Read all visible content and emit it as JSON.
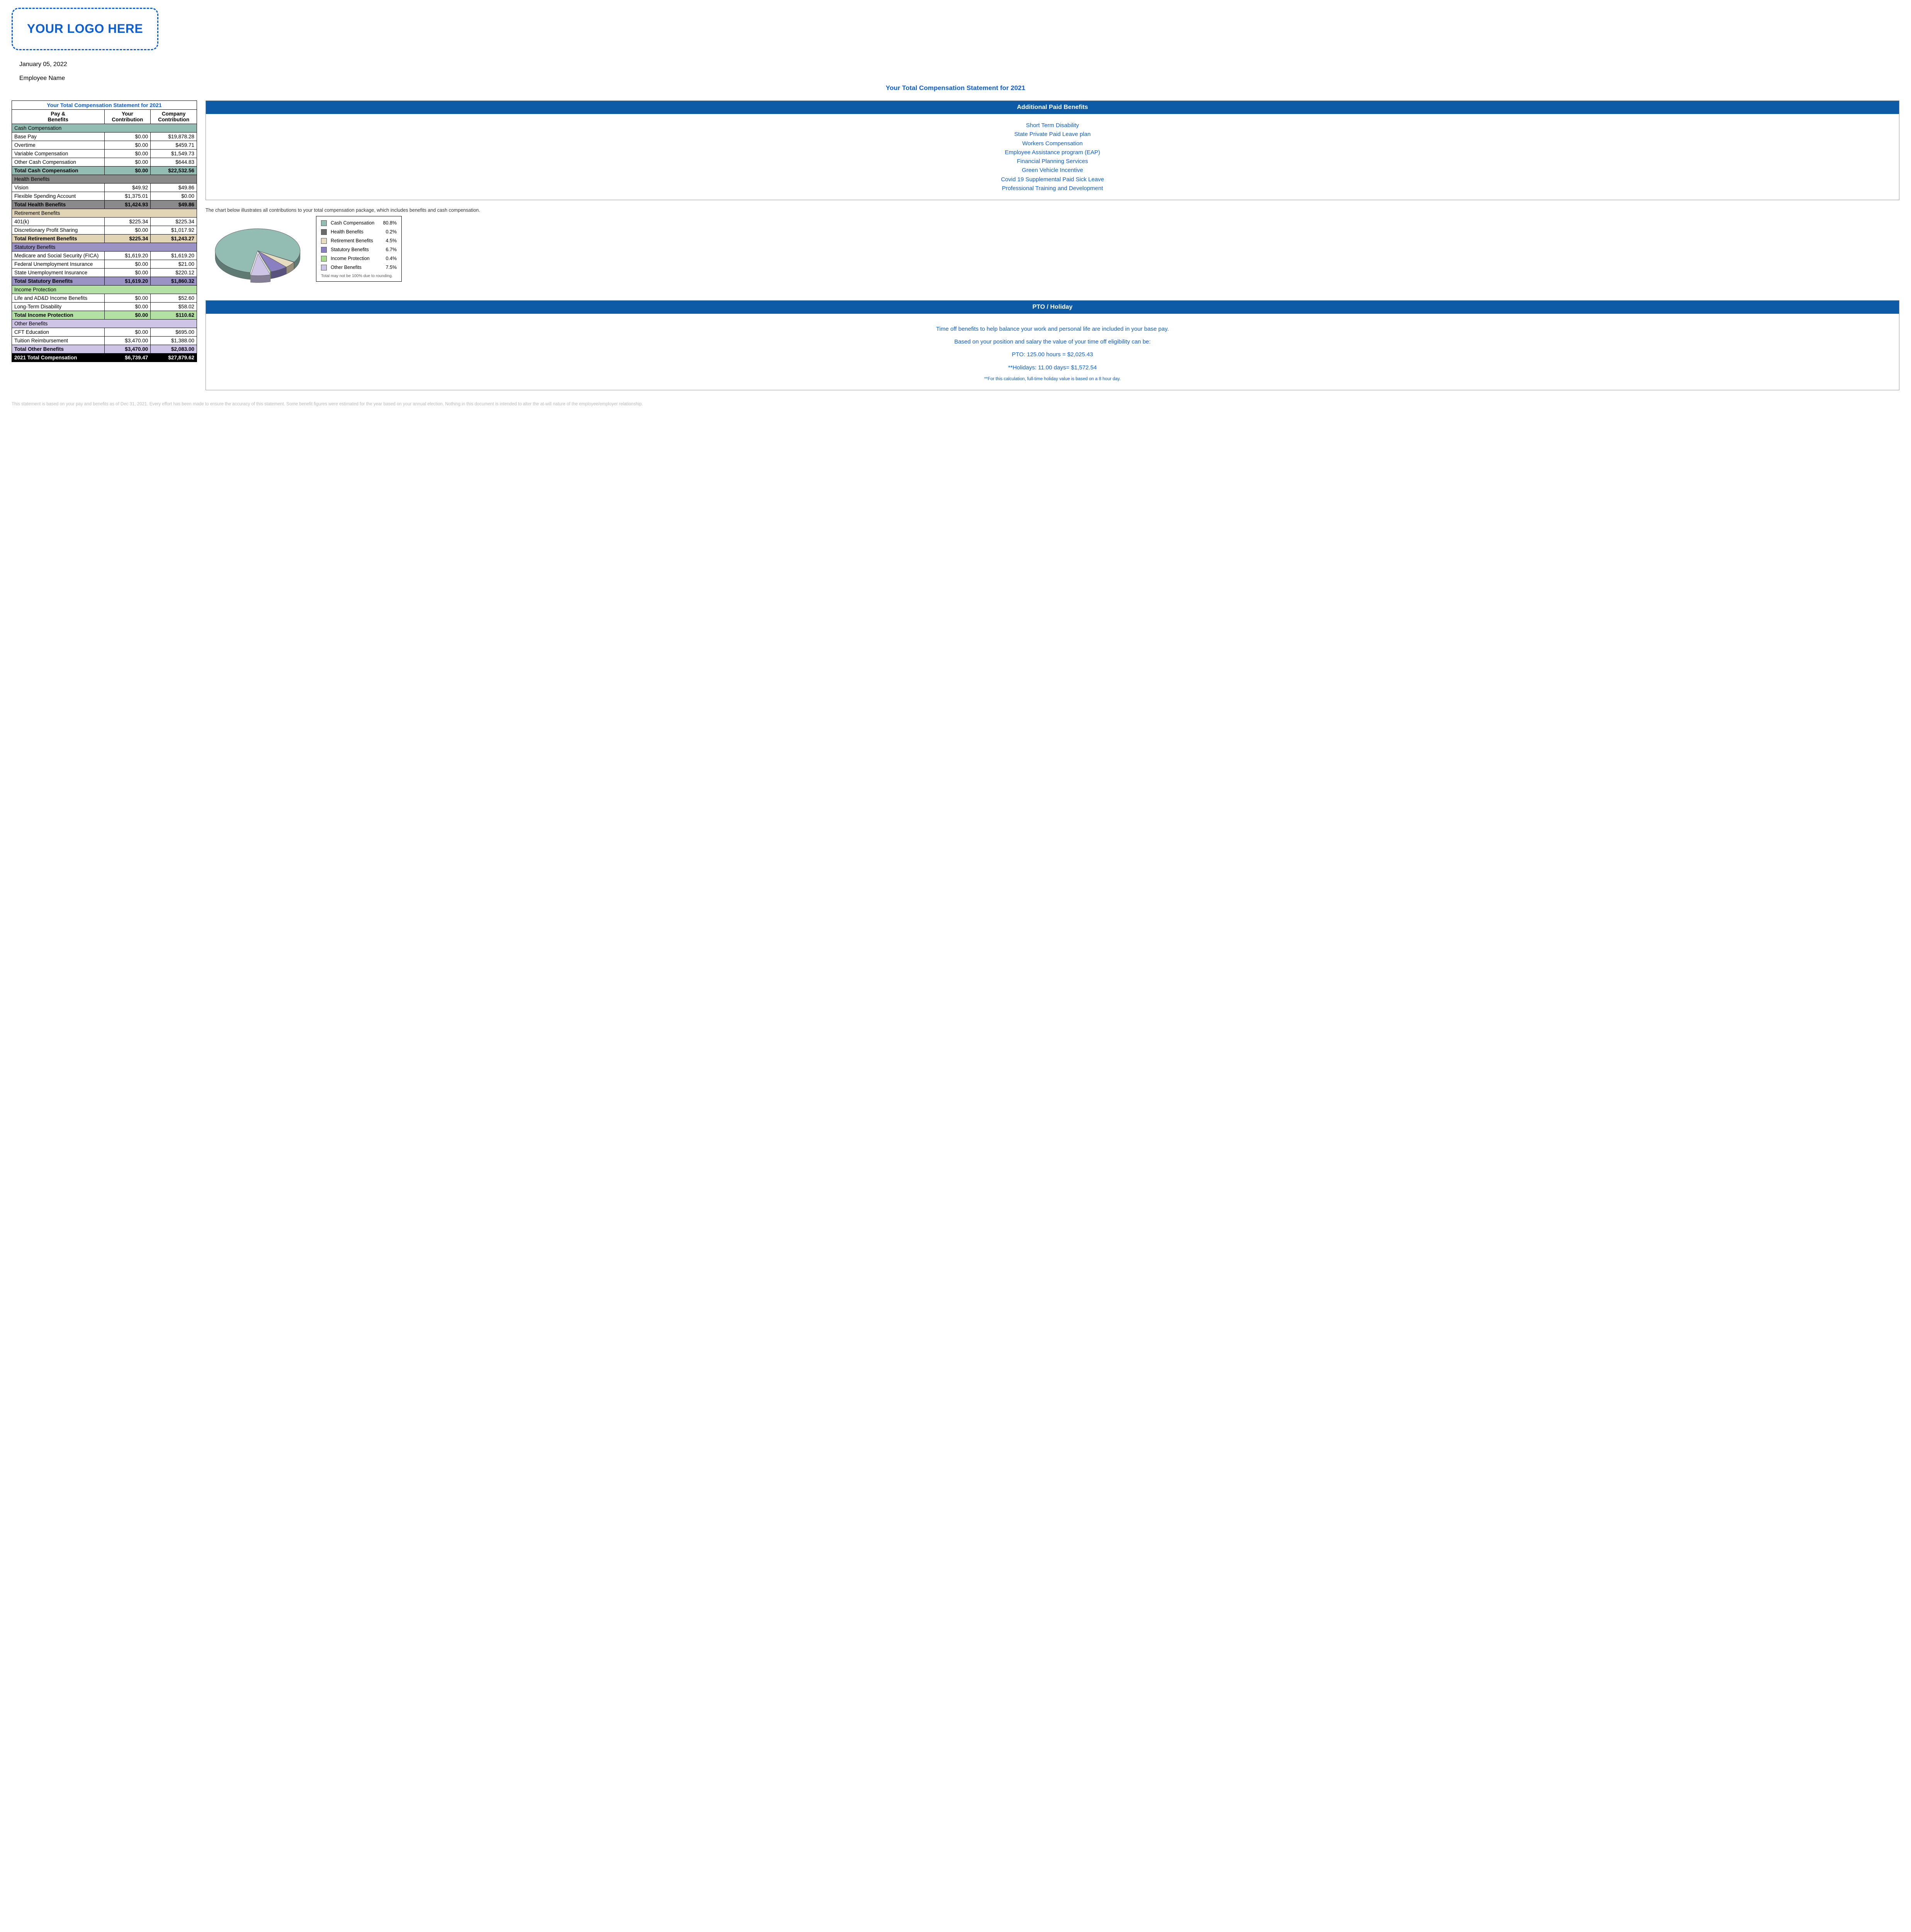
{
  "logo_text": "YOUR LOGO HERE",
  "date": "January 05, 2022",
  "employee_name": "Employee Name",
  "main_title": "Your Total Compensation Statement for 2021",
  "table": {
    "title": "Your Total Compensation Statement for 2021",
    "header": {
      "col1": "Pay &\nBenefits",
      "col2": "Your\nContribution",
      "col3": "Company\nContribution"
    },
    "sections": [
      {
        "name": "Cash Compensation",
        "bg": "#93bdb2",
        "rows": [
          {
            "label": "Base Pay",
            "your": "$0.00",
            "company": "$19,878.28"
          },
          {
            "label": "Overtime",
            "your": "$0.00",
            "company": "$459.71"
          },
          {
            "label": "Variable Compensation",
            "your": "$0.00",
            "company": "$1,549.73"
          },
          {
            "label": "Other Cash Compensation",
            "your": "$0.00",
            "company": "$644.83"
          }
        ],
        "total": {
          "label": "Total Cash Compensation",
          "your": "$0.00",
          "company": "$22,532.56"
        }
      },
      {
        "name": "Health Benefits",
        "bg": "#8a8a8a",
        "rows": [
          {
            "label": "Vision",
            "your": "$49.92",
            "company": "$49.86"
          },
          {
            "label": "Flexible Spending Account",
            "your": "$1,375.01",
            "company": "$0.00"
          }
        ],
        "total": {
          "label": "Total Health Benefits",
          "your": "$1,424.93",
          "company": "$49.86"
        }
      },
      {
        "name": "Retirement Benefits",
        "bg": "#e1d5b6",
        "rows": [
          {
            "label": "401(k)",
            "your": "$225.34",
            "company": "$225.34"
          },
          {
            "label": "Discretionary Profit Sharing",
            "your": "$0.00",
            "company": "$1,017.92"
          }
        ],
        "total": {
          "label": "Total Retirement Benefits",
          "your": "$225.34",
          "company": "$1,243.27"
        }
      },
      {
        "name": "Statutory Benefits",
        "bg": "#9c93c5",
        "rows": [
          {
            "label": "Medicare and Social Security (FICA)",
            "your": "$1,619.20",
            "company": "$1,619.20"
          },
          {
            "label": "Federal Unemployment Insurance",
            "your": "$0.00",
            "company": "$21.00"
          },
          {
            "label": "State Unemployment Insurance",
            "your": "$0.00",
            "company": "$220.12"
          }
        ],
        "total": {
          "label": "Total Statutory Benefits",
          "your": "$1,619.20",
          "company": "$1,860.32"
        }
      },
      {
        "name": "Income Protection",
        "bg": "#b3e0a3",
        "rows": [
          {
            "label": "Life and AD&D Income Benefits",
            "your": "$0.00",
            "company": "$52.60"
          },
          {
            "label": "Long-Term Disability",
            "your": "$0.00",
            "company": "$58.02"
          }
        ],
        "total": {
          "label": "Total Income Protection",
          "your": "$0.00",
          "company": "$110.62"
        }
      },
      {
        "name": "Other Benefits",
        "bg": "#cdc4e6",
        "rows": [
          {
            "label": "CFT Education",
            "your": "$0.00",
            "company": "$695.00"
          },
          {
            "label": "Tuition Reimbursement",
            "your": "$3,470.00",
            "company": "$1,388.00"
          }
        ],
        "total": {
          "label": "Total Other Benefits",
          "your": "$3,470.00",
          "company": "$2,083.00"
        }
      }
    ],
    "grand_total": {
      "label": "2021 Total Compensation",
      "your": "$6,739.47",
      "company": "$27,879.62"
    }
  },
  "additional_benefits": {
    "title": "Additional Paid Benefits",
    "items": [
      "Short Term Disability",
      "State Private Paid Leave plan",
      "Workers Compensation",
      "Employee Assistance program (EAP)",
      "Financial Planning Services",
      "Green Vehicle Incentive",
      "Covid 19 Supplemental Paid Sick Leave",
      "Professional Training and Development"
    ]
  },
  "chart": {
    "caption": "The chart below illustrates all contributions to your total compensation package, which includes benefits and cash compensation.",
    "type": "pie",
    "slices": [
      {
        "label": "Cash Compensation",
        "pct": 80.8,
        "pct_label": "80.8%",
        "color": "#93bdb2"
      },
      {
        "label": "Health Benefits",
        "pct": 0.2,
        "pct_label": "0.2%",
        "color": "#6b6b6b"
      },
      {
        "label": "Retirement Benefits",
        "pct": 4.5,
        "pct_label": "4.5%",
        "color": "#e6dcc0"
      },
      {
        "label": "Statutory Benefits",
        "pct": 6.7,
        "pct_label": "6.7%",
        "color": "#8a7fc0"
      },
      {
        "label": "Income Protection",
        "pct": 0.4,
        "pct_label": "0.4%",
        "color": "#a7d98e"
      },
      {
        "label": "Other Benefits",
        "pct": 7.5,
        "pct_label": "7.5%",
        "color": "#cdc4e6"
      }
    ],
    "legend_note": "Total may not be 100% due to rounding.",
    "start_angle_deg": 100,
    "tilt": 0.52,
    "depth": 18,
    "explode_index": 5,
    "explode_dist": 14,
    "stroke": "#555"
  },
  "pto": {
    "title": "PTO / Holiday",
    "p1": "Time off benefits to help balance your work and personal life are included in your base pay.",
    "p2": "Based on your position and salary the value of your time off eligibility can be:",
    "pto_line": "PTO: 125.00 hours = $2,025.43",
    "holiday_line": "**Holidays: 11.00 days= $1,572.54",
    "note": "**For this calculation, full-time holiday value is based on a 8 hour day."
  },
  "disclaimer": "This statement is based on your pay and benefits as of Dec 31, 2021. Every effort has been made to ensure the accuracy of this statement. Some benefit figures were estimated for the year based on your annual election. Nothing in this document is intended to alter the at-will nature of the employee/employer relationship."
}
